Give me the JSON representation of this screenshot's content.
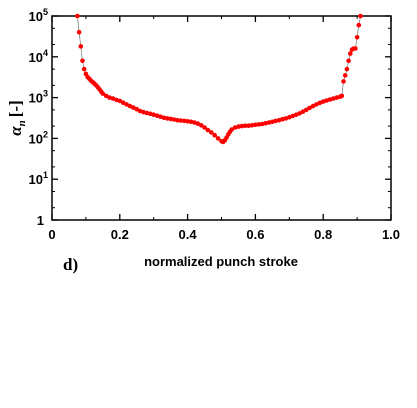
{
  "chart_data": {
    "type": "scatter",
    "panel_label": "d)",
    "xlabel": "normalized punch stroke",
    "ylabel_symbol": "α",
    "ylabel_subscript": "n",
    "ylabel_unit": "[-]",
    "xlim": [
      0,
      1.0
    ],
    "ylim": [
      1,
      100000
    ],
    "yscale": "log",
    "grid": false,
    "x_ticks": [
      "0",
      "0.2",
      "0.4",
      "0.6",
      "0.8",
      "1.0"
    ],
    "y_ticks": [
      {
        "value": 1,
        "base": "1",
        "exp": ""
      },
      {
        "value": 10,
        "base": "10",
        "exp": "1"
      },
      {
        "value": 100,
        "base": "10",
        "exp": "2"
      },
      {
        "value": 1000,
        "base": "10",
        "exp": "3"
      },
      {
        "value": 10000,
        "base": "10",
        "exp": "4"
      },
      {
        "value": 100000,
        "base": "10",
        "exp": "5"
      }
    ],
    "marker_color": "#ff0000",
    "line_color": "#888888",
    "series": [
      {
        "x": [
          0.075,
          0.08,
          0.085,
          0.09,
          0.095,
          0.1,
          0.105,
          0.11,
          0.115,
          0.12,
          0.125,
          0.13,
          0.135,
          0.14,
          0.145,
          0.15,
          0.16,
          0.17,
          0.18,
          0.19,
          0.2,
          0.21,
          0.22,
          0.23,
          0.24,
          0.25,
          0.26,
          0.27,
          0.28,
          0.29,
          0.3,
          0.31,
          0.32,
          0.33,
          0.34,
          0.35,
          0.36,
          0.37,
          0.38,
          0.39,
          0.4,
          0.41,
          0.42,
          0.43,
          0.44,
          0.45,
          0.46,
          0.47,
          0.48,
          0.49,
          0.5,
          0.505,
          0.51,
          0.515,
          0.52,
          0.525,
          0.53,
          0.54,
          0.55,
          0.56,
          0.57,
          0.58,
          0.59,
          0.6,
          0.61,
          0.62,
          0.63,
          0.64,
          0.65,
          0.66,
          0.67,
          0.68,
          0.69,
          0.7,
          0.71,
          0.72,
          0.73,
          0.74,
          0.75,
          0.76,
          0.77,
          0.78,
          0.79,
          0.8,
          0.81,
          0.82,
          0.83,
          0.84,
          0.85,
          0.855,
          0.86,
          0.865,
          0.87,
          0.875,
          0.88,
          0.885,
          0.89,
          0.895,
          0.9,
          0.905,
          0.91
        ],
        "y": [
          100000,
          40000,
          18000,
          8000,
          5000,
          3800,
          3200,
          2900,
          2600,
          2400,
          2200,
          2000,
          1800,
          1600,
          1400,
          1250,
          1100,
          1000,
          950,
          880,
          830,
          750,
          680,
          620,
          570,
          520,
          470,
          440,
          420,
          400,
          380,
          360,
          340,
          320,
          310,
          300,
          290,
          280,
          275,
          268,
          262,
          255,
          245,
          230,
          210,
          185,
          160,
          140,
          120,
          100,
          85,
          82,
          90,
          105,
          125,
          145,
          165,
          185,
          195,
          200,
          205,
          205,
          210,
          215,
          220,
          225,
          235,
          245,
          255,
          268,
          280,
          295,
          310,
          330,
          355,
          380,
          410,
          450,
          500,
          560,
          620,
          680,
          740,
          800,
          850,
          900,
          950,
          1000,
          1050,
          1100,
          2500,
          3500,
          5000,
          8000,
          12000,
          15000,
          16000,
          16000,
          30000,
          60000,
          100000
        ]
      }
    ]
  }
}
